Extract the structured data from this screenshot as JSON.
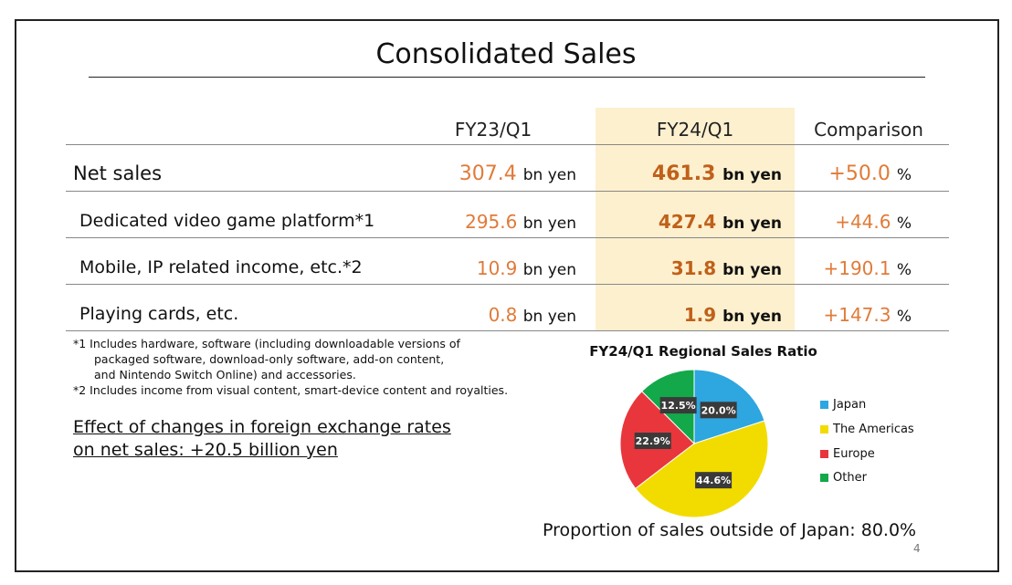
{
  "title": "Consolidated Sales",
  "headers": {
    "col1": "FY23/Q1",
    "col2": "FY24/Q1",
    "col3": "Comparison"
  },
  "rows": [
    {
      "label": "Net sales",
      "fy23": "307.4",
      "fy24": "461.3",
      "cmp": "+50.0",
      "unit": "bn yen",
      "pct": "%"
    },
    {
      "label": "Dedicated video game platform*1",
      "fy23": "295.6",
      "fy24": "427.4",
      "cmp": "+44.6",
      "unit": "bn yen",
      "pct": "%"
    },
    {
      "label": "Mobile, IP related income, etc.*2",
      "fy23": "10.9",
      "fy24": "31.8",
      "cmp": "+190.1",
      "unit": "bn yen",
      "pct": "%"
    },
    {
      "label": "Playing cards, etc.",
      "fy23": "0.8",
      "fy24": "1.9",
      "cmp": "+147.3",
      "unit": "bn yen",
      "pct": "%"
    }
  ],
  "notes": {
    "n1_line1": "*1 Includes hardware, software (including downloadable versions of",
    "n1_line2": "packaged software, download-only software, add-on content,",
    "n1_line3": "and Nintendo Switch Online) and accessories.",
    "n2": "*2 Includes income from visual content, smart-device content and royalties."
  },
  "fx": {
    "line1": "Effect of changes in foreign exchange rates",
    "line2": "on net sales: +20.5 billion yen"
  },
  "chart_data": {
    "type": "pie",
    "title": "FY24/Q1 Regional Sales Ratio",
    "categories": [
      "Japan",
      "The Americas",
      "Europe",
      "Other"
    ],
    "values": [
      20.0,
      44.6,
      22.9,
      12.5
    ],
    "labels": [
      "20.0%",
      "44.6%",
      "22.9%",
      "12.5%"
    ],
    "colors": [
      "#2ea6e0",
      "#f2dc00",
      "#e8363c",
      "#13a84a"
    ],
    "legend_position": "right"
  },
  "proportion": "Proportion of sales outside of Japan: 80.0%",
  "page_number": "4"
}
